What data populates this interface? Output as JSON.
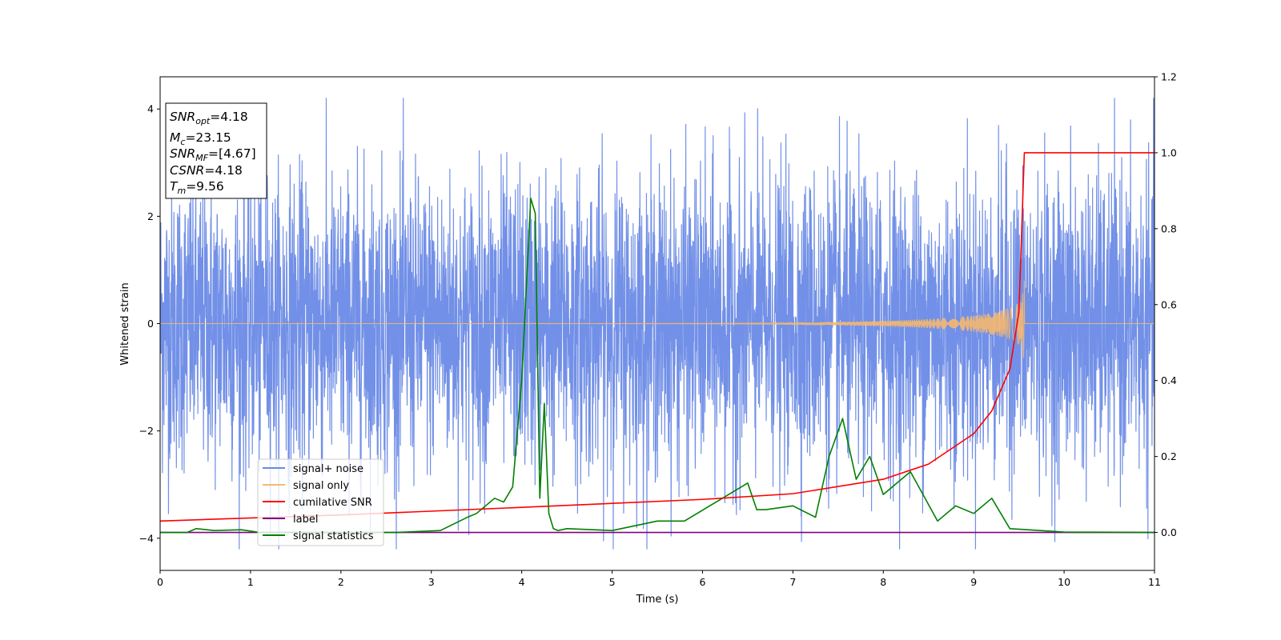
{
  "chart_data": {
    "type": "line",
    "xlabel": "Time (s)",
    "ylabel": "Whitened strain",
    "xlim": [
      0,
      11
    ],
    "ylim": [
      -4.6,
      4.6
    ],
    "y2lim": [
      -0.1,
      1.2
    ],
    "x_ticks": [
      "0",
      "1",
      "2",
      "3",
      "4",
      "5",
      "6",
      "7",
      "8",
      "9",
      "10",
      "11"
    ],
    "y_ticks": [
      "−4",
      "−2",
      "0",
      "2",
      "4"
    ],
    "y2_ticks": [
      "0.0",
      "0.2",
      "0.4",
      "0.6",
      "0.8",
      "1.0",
      "1.2"
    ],
    "grid": false,
    "legend_location": "lower-left",
    "info_box": {
      "snr_opt": {
        "sym": "SNR",
        "sub": "opt",
        "value": "=4.18"
      },
      "mc": {
        "sym": "M",
        "sub": "c",
        "value": "=23.15"
      },
      "snr_mf": {
        "sym": "SNR",
        "sub": "MF",
        "value": "=[4.67]"
      },
      "csnr": {
        "sym": "CSNR",
        "value": "=4.18"
      },
      "tm": {
        "sym": "T",
        "sub": "m",
        "value": "=9.56"
      }
    },
    "series": [
      {
        "name": "signal+ noise",
        "axis": "left",
        "color": "#6a8ae6",
        "description_values": "gaussian noise, amplitude ~ +/-4 across 0-11 s"
      },
      {
        "name": "signal only",
        "axis": "left",
        "color": "#f5b870",
        "chirp_peak_time": 9.56,
        "chirp_peak_amplitude": 0.95
      },
      {
        "name": "cumilative SNR",
        "axis": "right",
        "color": "#ff0000",
        "x": [
          0,
          2,
          4,
          6,
          7,
          8,
          8.5,
          9,
          9.2,
          9.4,
          9.5,
          9.56,
          11
        ],
        "y": [
          0.03,
          0.046,
          0.066,
          0.087,
          0.102,
          0.14,
          0.18,
          0.26,
          0.32,
          0.43,
          0.58,
          1.0,
          1.0
        ]
      },
      {
        "name": "label",
        "axis": "right",
        "color": "#800080",
        "x": [
          0,
          11
        ],
        "y": [
          0,
          0
        ]
      },
      {
        "name": "signal statistics",
        "axis": "right",
        "color": "#008000",
        "x": [
          0,
          0.3,
          0.4,
          0.6,
          0.9,
          1.1,
          2.6,
          3.1,
          3.4,
          3.5,
          3.6,
          3.7,
          3.8,
          3.9,
          4.0,
          4.1,
          4.15,
          4.2,
          4.25,
          4.3,
          4.35,
          4.4,
          4.5,
          5.0,
          5.5,
          5.8,
          6.5,
          6.6,
          6.7,
          7.0,
          7.25,
          7.4,
          7.55,
          7.7,
          7.85,
          8.0,
          8.3,
          8.6,
          8.8,
          9.0,
          9.2,
          9.4,
          10.0,
          11.0
        ],
        "y": [
          0,
          0,
          0.01,
          0.005,
          0.007,
          0,
          0,
          0.005,
          0.04,
          0.05,
          0.07,
          0.09,
          0.08,
          0.12,
          0.4,
          0.88,
          0.84,
          0.09,
          0.34,
          0.05,
          0.01,
          0.005,
          0.01,
          0.005,
          0.03,
          0.03,
          0.13,
          0.06,
          0.06,
          0.07,
          0.04,
          0.2,
          0.3,
          0.14,
          0.2,
          0.1,
          0.16,
          0.03,
          0.07,
          0.05,
          0.09,
          0.01,
          0.001,
          0
        ]
      }
    ]
  }
}
